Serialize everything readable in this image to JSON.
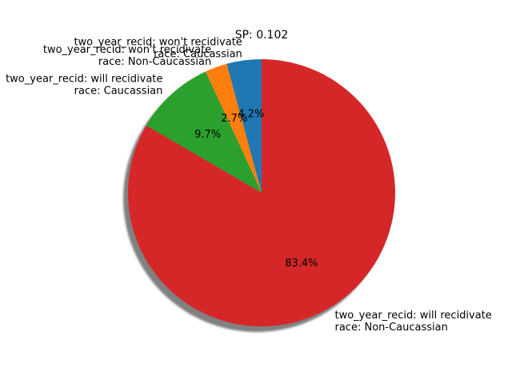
{
  "chart_data": {
    "type": "pie",
    "title": "SP: 0.102",
    "slices": [
      {
        "label": [
          "two_year_recid: won't recidivate",
          "race: Caucassian"
        ],
        "value": 4.2,
        "pct_label": "4.2%",
        "color": "#1f77b4"
      },
      {
        "label": [
          "two_year_recid: won't recidivate",
          "race: Non-Caucassian"
        ],
        "value": 2.7,
        "pct_label": "2.7%",
        "color": "#ff7f0e"
      },
      {
        "label": [
          "two_year_recid: will recidivate",
          "race: Caucassian"
        ],
        "value": 9.7,
        "pct_label": "9.7%",
        "color": "#2ca02c"
      },
      {
        "label": [
          "two_year_recid: will recidivate",
          "race: Non-Caucassian"
        ],
        "value": 83.4,
        "pct_label": "83.4%",
        "color": "#d62728"
      }
    ],
    "start_angle": "top",
    "direction": "counterclockwise",
    "shadow": true
  }
}
